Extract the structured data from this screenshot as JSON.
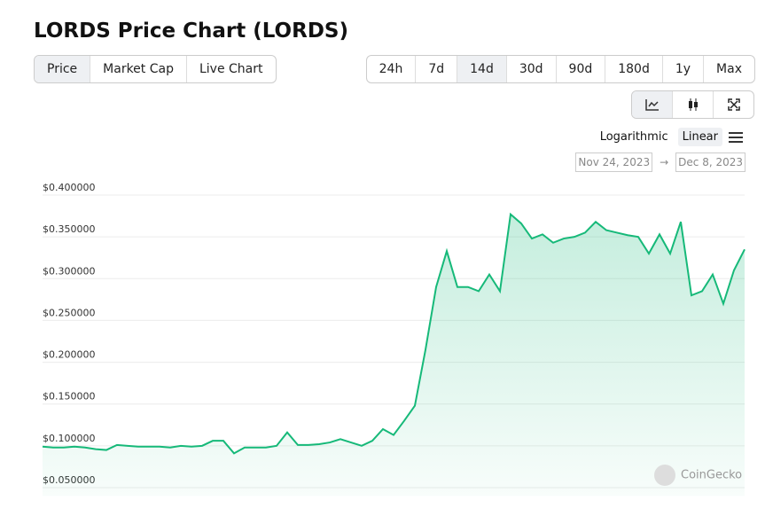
{
  "header": {
    "title": "LORDS Price Chart (LORDS)"
  },
  "tabs": [
    "Price",
    "Market Cap",
    "Live Chart"
  ],
  "ranges": [
    "24h",
    "7d",
    "14d",
    "30d",
    "90d",
    "180d",
    "1y",
    "Max"
  ],
  "scale": {
    "options": [
      "Logarithmic",
      "Linear"
    ]
  },
  "dates": {
    "from": "Nov 24, 2023",
    "arrow": "→",
    "to": "Dec 8, 2023"
  },
  "watermark": "CoinGecko",
  "chart_data": {
    "type": "area",
    "color": "#16b979",
    "grid": true,
    "ylim": [
      0.04,
      0.41
    ],
    "yticks": [
      {
        "value": 0.05,
        "label": "$0.050000"
      },
      {
        "value": 0.1,
        "label": "$0.100000"
      },
      {
        "value": 0.15,
        "label": "$0.150000"
      },
      {
        "value": 0.2,
        "label": "$0.200000"
      },
      {
        "value": 0.25,
        "label": "$0.250000"
      },
      {
        "value": 0.3,
        "label": "$0.300000"
      },
      {
        "value": 0.35,
        "label": "$0.350000"
      },
      {
        "value": 0.4,
        "label": "$0.400000"
      }
    ],
    "values": [
      0.099,
      0.098,
      0.098,
      0.099,
      0.098,
      0.096,
      0.095,
      0.101,
      0.1,
      0.099,
      0.099,
      0.099,
      0.098,
      0.1,
      0.099,
      0.1,
      0.106,
      0.106,
      0.091,
      0.098,
      0.098,
      0.098,
      0.1,
      0.116,
      0.101,
      0.101,
      0.102,
      0.104,
      0.108,
      0.104,
      0.1,
      0.106,
      0.12,
      0.113,
      0.13,
      0.148,
      0.215,
      0.29,
      0.333,
      0.29,
      0.29,
      0.285,
      0.305,
      0.285,
      0.377,
      0.366,
      0.348,
      0.353,
      0.343,
      0.348,
      0.35,
      0.355,
      0.368,
      0.358,
      0.355,
      0.352,
      0.35,
      0.33,
      0.353,
      0.33,
      0.368,
      0.28,
      0.285,
      0.305,
      0.27,
      0.31,
      0.335
    ]
  }
}
